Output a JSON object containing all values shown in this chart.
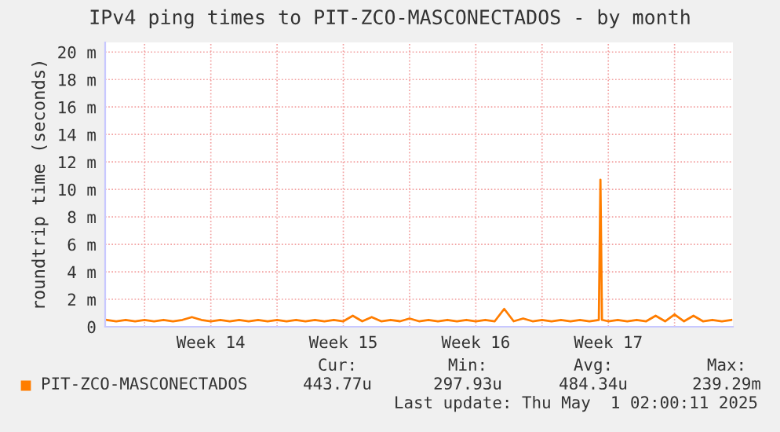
{
  "chart_data": {
    "type": "line",
    "title": "IPv4 ping times to PIT-ZCO-MASCONECTADOS - by month",
    "ylabel": "roundtrip time (seconds)",
    "x": [
      "2025-03-29T00:00",
      "2025-03-29T12:00",
      "2025-03-30T00:00",
      "2025-03-30T12:00",
      "2025-03-31T00:00",
      "2025-03-31T12:00",
      "2025-04-01T00:00",
      "2025-04-01T12:00",
      "2025-04-02T00:00",
      "2025-04-02T12:00",
      "2025-04-03T00:00",
      "2025-04-03T12:00",
      "2025-04-04T00:00",
      "2025-04-04T12:00",
      "2025-04-05T00:00",
      "2025-04-05T12:00",
      "2025-04-06T00:00",
      "2025-04-06T12:00",
      "2025-04-07T00:00",
      "2025-04-07T12:00",
      "2025-04-08T00:00",
      "2025-04-08T12:00",
      "2025-04-09T00:00",
      "2025-04-09T12:00",
      "2025-04-10T00:00",
      "2025-04-10T12:00",
      "2025-04-11T00:00",
      "2025-04-11T12:00",
      "2025-04-12T00:00",
      "2025-04-12T12:00",
      "2025-04-13T00:00",
      "2025-04-13T12:00",
      "2025-04-14T00:00",
      "2025-04-14T12:00",
      "2025-04-15T00:00",
      "2025-04-15T12:00",
      "2025-04-16T00:00",
      "2025-04-16T12:00",
      "2025-04-17T00:00",
      "2025-04-17T12:00",
      "2025-04-18T00:00",
      "2025-04-18T12:00",
      "2025-04-19T00:00",
      "2025-04-19T12:00",
      "2025-04-20T00:00",
      "2025-04-20T12:00",
      "2025-04-21T00:00",
      "2025-04-21T12:00",
      "2025-04-22T00:00",
      "2025-04-22T12:00",
      "2025-04-23T00:00",
      "2025-04-23T12:00",
      "2025-04-24T00:00",
      "2025-04-24T02:00",
      "2025-04-24T04:00",
      "2025-04-24T12:00",
      "2025-04-25T00:00",
      "2025-04-25T12:00",
      "2025-04-26T00:00",
      "2025-04-26T12:00",
      "2025-04-27T00:00",
      "2025-04-27T12:00",
      "2025-04-28T00:00",
      "2025-04-28T12:00",
      "2025-04-29T00:00",
      "2025-04-29T12:00",
      "2025-04-30T00:00",
      "2025-04-30T12:00",
      "2025-05-01T00:00"
    ],
    "series": [
      {
        "name": "PIT-ZCO-MASCONECTADOS",
        "color": "#ff7d00",
        "values": [
          0.5,
          0.4,
          0.5,
          0.4,
          0.5,
          0.4,
          0.5,
          0.4,
          0.5,
          0.7,
          0.5,
          0.4,
          0.5,
          0.4,
          0.5,
          0.4,
          0.5,
          0.4,
          0.5,
          0.4,
          0.5,
          0.4,
          0.5,
          0.4,
          0.5,
          0.4,
          0.8,
          0.4,
          0.7,
          0.4,
          0.5,
          0.4,
          0.6,
          0.4,
          0.5,
          0.4,
          0.5,
          0.4,
          0.5,
          0.4,
          0.5,
          0.4,
          1.3,
          0.4,
          0.6,
          0.4,
          0.5,
          0.4,
          0.5,
          0.4,
          0.5,
          0.4,
          0.5,
          10.7,
          0.5,
          0.4,
          0.5,
          0.4,
          0.5,
          0.4,
          0.8,
          0.4,
          0.9,
          0.4,
          0.8,
          0.4,
          0.5,
          0.4,
          0.5
        ]
      }
    ],
    "xlim": [
      "2025-03-28T22:00",
      "2025-05-01T02:00"
    ],
    "xticks": [
      {
        "value": "2025-03-31",
        "label": null
      },
      {
        "value": "2025-04-03T12:00",
        "label": "Week 14"
      },
      {
        "value": "2025-04-07",
        "label": null
      },
      {
        "value": "2025-04-10T12:00",
        "label": "Week 15"
      },
      {
        "value": "2025-04-14",
        "label": null
      },
      {
        "value": "2025-04-17T12:00",
        "label": "Week 16"
      },
      {
        "value": "2025-04-21",
        "label": null
      },
      {
        "value": "2025-04-24T12:00",
        "label": "Week 17"
      },
      {
        "value": "2025-04-28",
        "label": null
      }
    ],
    "ylim": [
      0,
      20.7
    ],
    "yticks": [
      {
        "value": 0,
        "label": "0"
      },
      {
        "value": 2,
        "label": "2 m"
      },
      {
        "value": 4,
        "label": "4 m"
      },
      {
        "value": 6,
        "label": "6 m"
      },
      {
        "value": 8,
        "label": "8 m"
      },
      {
        "value": 10,
        "label": "10 m"
      },
      {
        "value": 12,
        "label": "12 m"
      },
      {
        "value": 14,
        "label": "14 m"
      },
      {
        "value": 16,
        "label": "16 m"
      },
      {
        "value": 18,
        "label": "18 m"
      },
      {
        "value": 20,
        "label": "20 m"
      }
    ],
    "grid": true,
    "legend": "bottom left",
    "annotations": [
      "Cur:",
      "Min:",
      "Avg:",
      "Max:",
      "443.77u",
      "297.93u",
      "484.34u",
      "239.29m",
      "Last update: Thu May  1 02:00:11 2025"
    ]
  }
}
